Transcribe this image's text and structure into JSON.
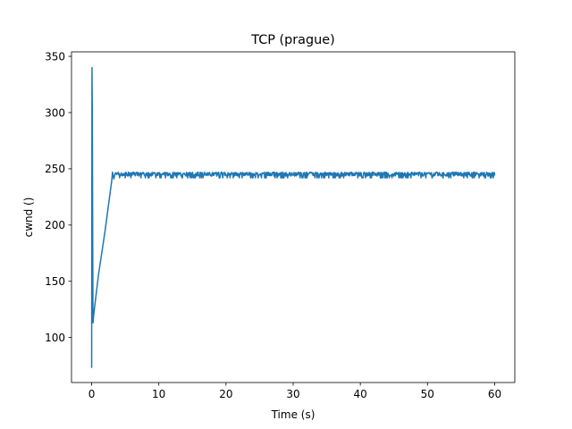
{
  "chart_data": {
    "type": "line",
    "title": "TCP (prague)",
    "xlabel": "Time (s)",
    "ylabel": "cwnd ()",
    "xlim": [
      -3,
      63
    ],
    "ylim": [
      60,
      354
    ],
    "xticks": [
      0,
      10,
      20,
      30,
      40,
      50,
      60
    ],
    "yticks": [
      100,
      150,
      200,
      250,
      300,
      350
    ],
    "grid": false,
    "legend": "none",
    "line_color": "#1f77b4",
    "series": [
      {
        "x": [
          0.0,
          0.05,
          0.1,
          0.15,
          0.2,
          0.3,
          1.0,
          2.0,
          3.0,
          3.1,
          3.3,
          3.5
        ],
        "y": [
          73,
          340,
          300,
          200,
          113,
          120,
          155,
          195,
          240,
          247,
          241,
          246
        ],
        "steady_state": {
          "x_start": 3.5,
          "x_end": 60,
          "low": 242,
          "high": 247,
          "final": 244
        }
      }
    ]
  }
}
